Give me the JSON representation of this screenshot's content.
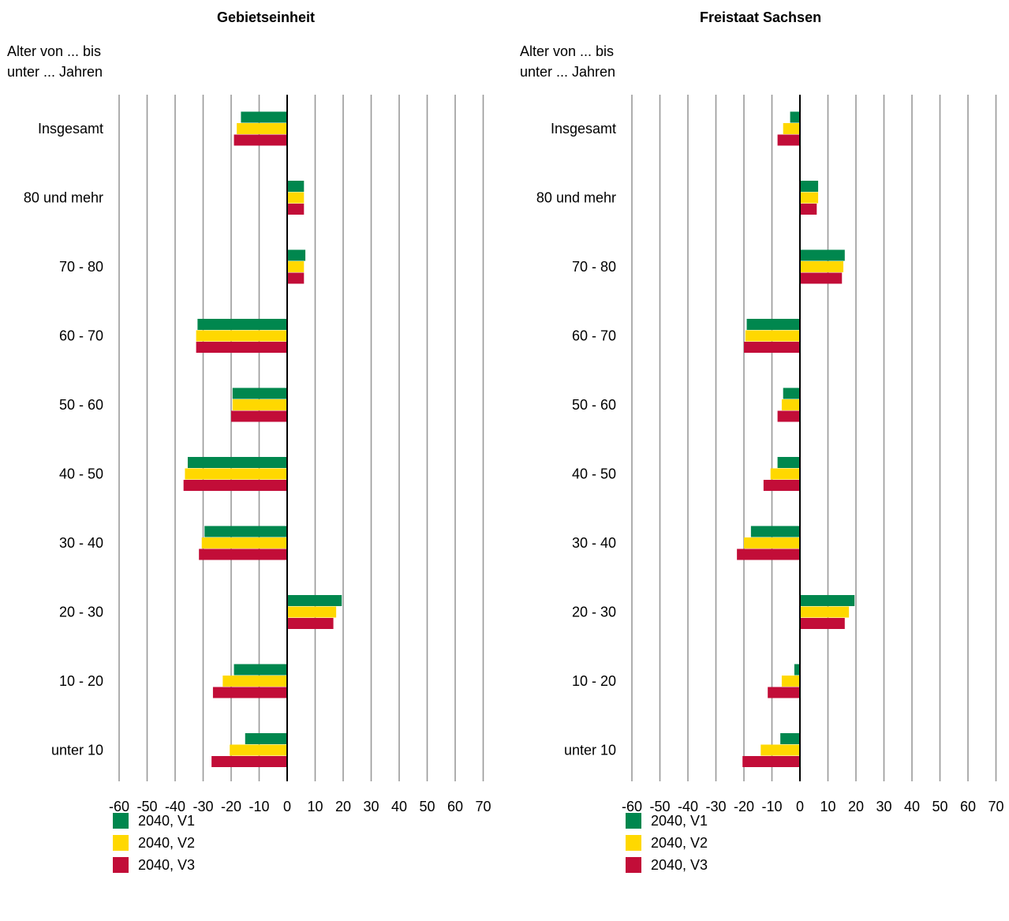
{
  "colors": {
    "V1": "#00874e",
    "V2": "#ffd800",
    "V3": "#c20d38",
    "grid": "#999999",
    "axis": "#000000"
  },
  "chart_data": [
    {
      "type": "bar",
      "orientation": "horizontal",
      "title": "Gebietseinheit",
      "ylabel": "Alter von ... bis\nunter ... Jahren",
      "xlim": [
        -60,
        70
      ],
      "xticks": [
        -60,
        -50,
        -40,
        -30,
        -20,
        -10,
        0,
        10,
        20,
        30,
        40,
        50,
        60,
        70
      ],
      "grid": true,
      "legend_position": "bottom-left",
      "categories": [
        "Insgesamt",
        "80 und mehr",
        "70 - 80",
        "60 - 70",
        "50 - 60",
        "40 - 50",
        "30 - 40",
        "20 - 30",
        "10 - 20",
        "unter 10"
      ],
      "series": [
        {
          "name": "2040, V1",
          "color": "#00874e",
          "values": [
            -16.5,
            6,
            6.5,
            -32,
            -19.5,
            -35.5,
            -29.5,
            19.5,
            -19,
            -15
          ]
        },
        {
          "name": "2040, V2",
          "color": "#ffd800",
          "values": [
            -18,
            6,
            6,
            -32.5,
            -19.5,
            -36.5,
            -30.5,
            17.5,
            -23,
            -20.5
          ]
        },
        {
          "name": "2040, V3",
          "color": "#c20d38",
          "values": [
            -19,
            6,
            6,
            -32.5,
            -20,
            -37,
            -31.5,
            16.5,
            -26.5,
            -27
          ]
        }
      ]
    },
    {
      "type": "bar",
      "orientation": "horizontal",
      "title": "Freistaat Sachsen",
      "ylabel": "Alter von ... bis\nunter ... Jahren",
      "xlim": [
        -60,
        70
      ],
      "xticks": [
        -60,
        -50,
        -40,
        -30,
        -20,
        -10,
        0,
        10,
        20,
        30,
        40,
        50,
        60,
        70
      ],
      "grid": true,
      "legend_position": "bottom-left",
      "categories": [
        "Insgesamt",
        "80 und mehr",
        "70 - 80",
        "60 - 70",
        "50 - 60",
        "40 - 50",
        "30 - 40",
        "20 - 30",
        "10 - 20",
        "unter 10"
      ],
      "series": [
        {
          "name": "2040, V1",
          "color": "#00874e",
          "values": [
            -3.5,
            6.5,
            16,
            -19,
            -6,
            -8,
            -17.5,
            19.5,
            -2,
            -7
          ]
        },
        {
          "name": "2040, V2",
          "color": "#ffd800",
          "values": [
            -6,
            6.5,
            15.5,
            -19.5,
            -6.5,
            -10.5,
            -20,
            17.5,
            -6.5,
            -14
          ]
        },
        {
          "name": "2040, V3",
          "color": "#c20d38",
          "values": [
            -8,
            6,
            15,
            -20,
            -8,
            -13,
            -22.5,
            16,
            -11.5,
            -20.5
          ]
        }
      ]
    }
  ]
}
